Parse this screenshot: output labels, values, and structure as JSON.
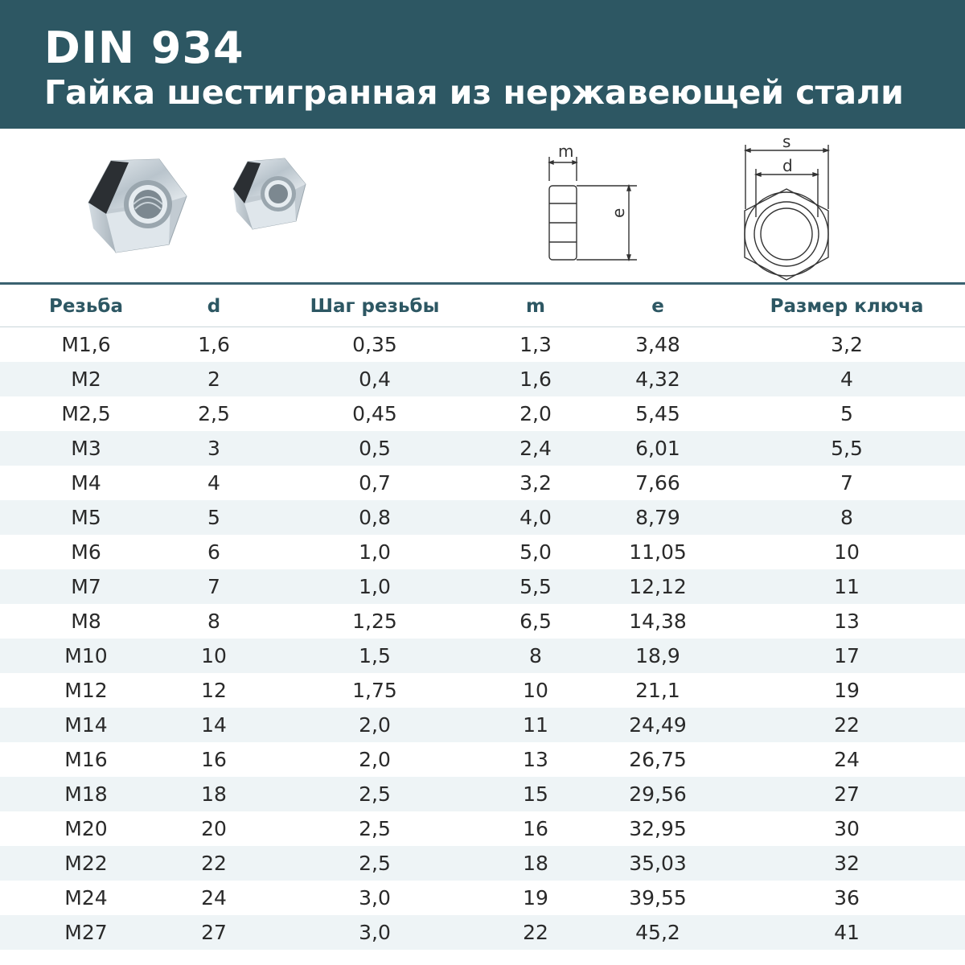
{
  "header": {
    "title": "DIN 934",
    "subtitle": "Гайка шестигранная из нержавеющей стали"
  },
  "diagram_labels": {
    "m": "m",
    "e": "e",
    "s": "s",
    "d": "d"
  },
  "colors": {
    "header_bg": "#2d5763",
    "header_text": "#ffffff",
    "table_header_text": "#2d5763",
    "alt_row": "#eef4f6"
  },
  "table": {
    "columns": [
      "Резьба",
      "d",
      "Шаг резьбы",
      "m",
      "e",
      "Размер ключа"
    ],
    "rows": [
      [
        "M1,6",
        "1,6",
        "0,35",
        "1,3",
        "3,48",
        "3,2"
      ],
      [
        "M2",
        "2",
        "0,4",
        "1,6",
        "4,32",
        "4"
      ],
      [
        "M2,5",
        "2,5",
        "0,45",
        "2,0",
        "5,45",
        "5"
      ],
      [
        "M3",
        "3",
        "0,5",
        "2,4",
        "6,01",
        "5,5"
      ],
      [
        "M4",
        "4",
        "0,7",
        "3,2",
        "7,66",
        "7"
      ],
      [
        "M5",
        "5",
        "0,8",
        "4,0",
        "8,79",
        "8"
      ],
      [
        "M6",
        "6",
        "1,0",
        "5,0",
        "11,05",
        "10"
      ],
      [
        "M7",
        "7",
        "1,0",
        "5,5",
        "12,12",
        "11"
      ],
      [
        "M8",
        "8",
        "1,25",
        "6,5",
        "14,38",
        "13"
      ],
      [
        "M10",
        "10",
        "1,5",
        "8",
        "18,9",
        "17"
      ],
      [
        "M12",
        "12",
        "1,75",
        "10",
        "21,1",
        "19"
      ],
      [
        "M14",
        "14",
        "2,0",
        "11",
        "24,49",
        "22"
      ],
      [
        "M16",
        "16",
        "2,0",
        "13",
        "26,75",
        "24"
      ],
      [
        "M18",
        "18",
        "2,5",
        "15",
        "29,56",
        "27"
      ],
      [
        "M20",
        "20",
        "2,5",
        "16",
        "32,95",
        "30"
      ],
      [
        "M22",
        "22",
        "2,5",
        "18",
        "35,03",
        "32"
      ],
      [
        "M24",
        "24",
        "3,0",
        "19",
        "39,55",
        "36"
      ],
      [
        "M27",
        "27",
        "3,0",
        "22",
        "45,2",
        "41"
      ]
    ]
  }
}
